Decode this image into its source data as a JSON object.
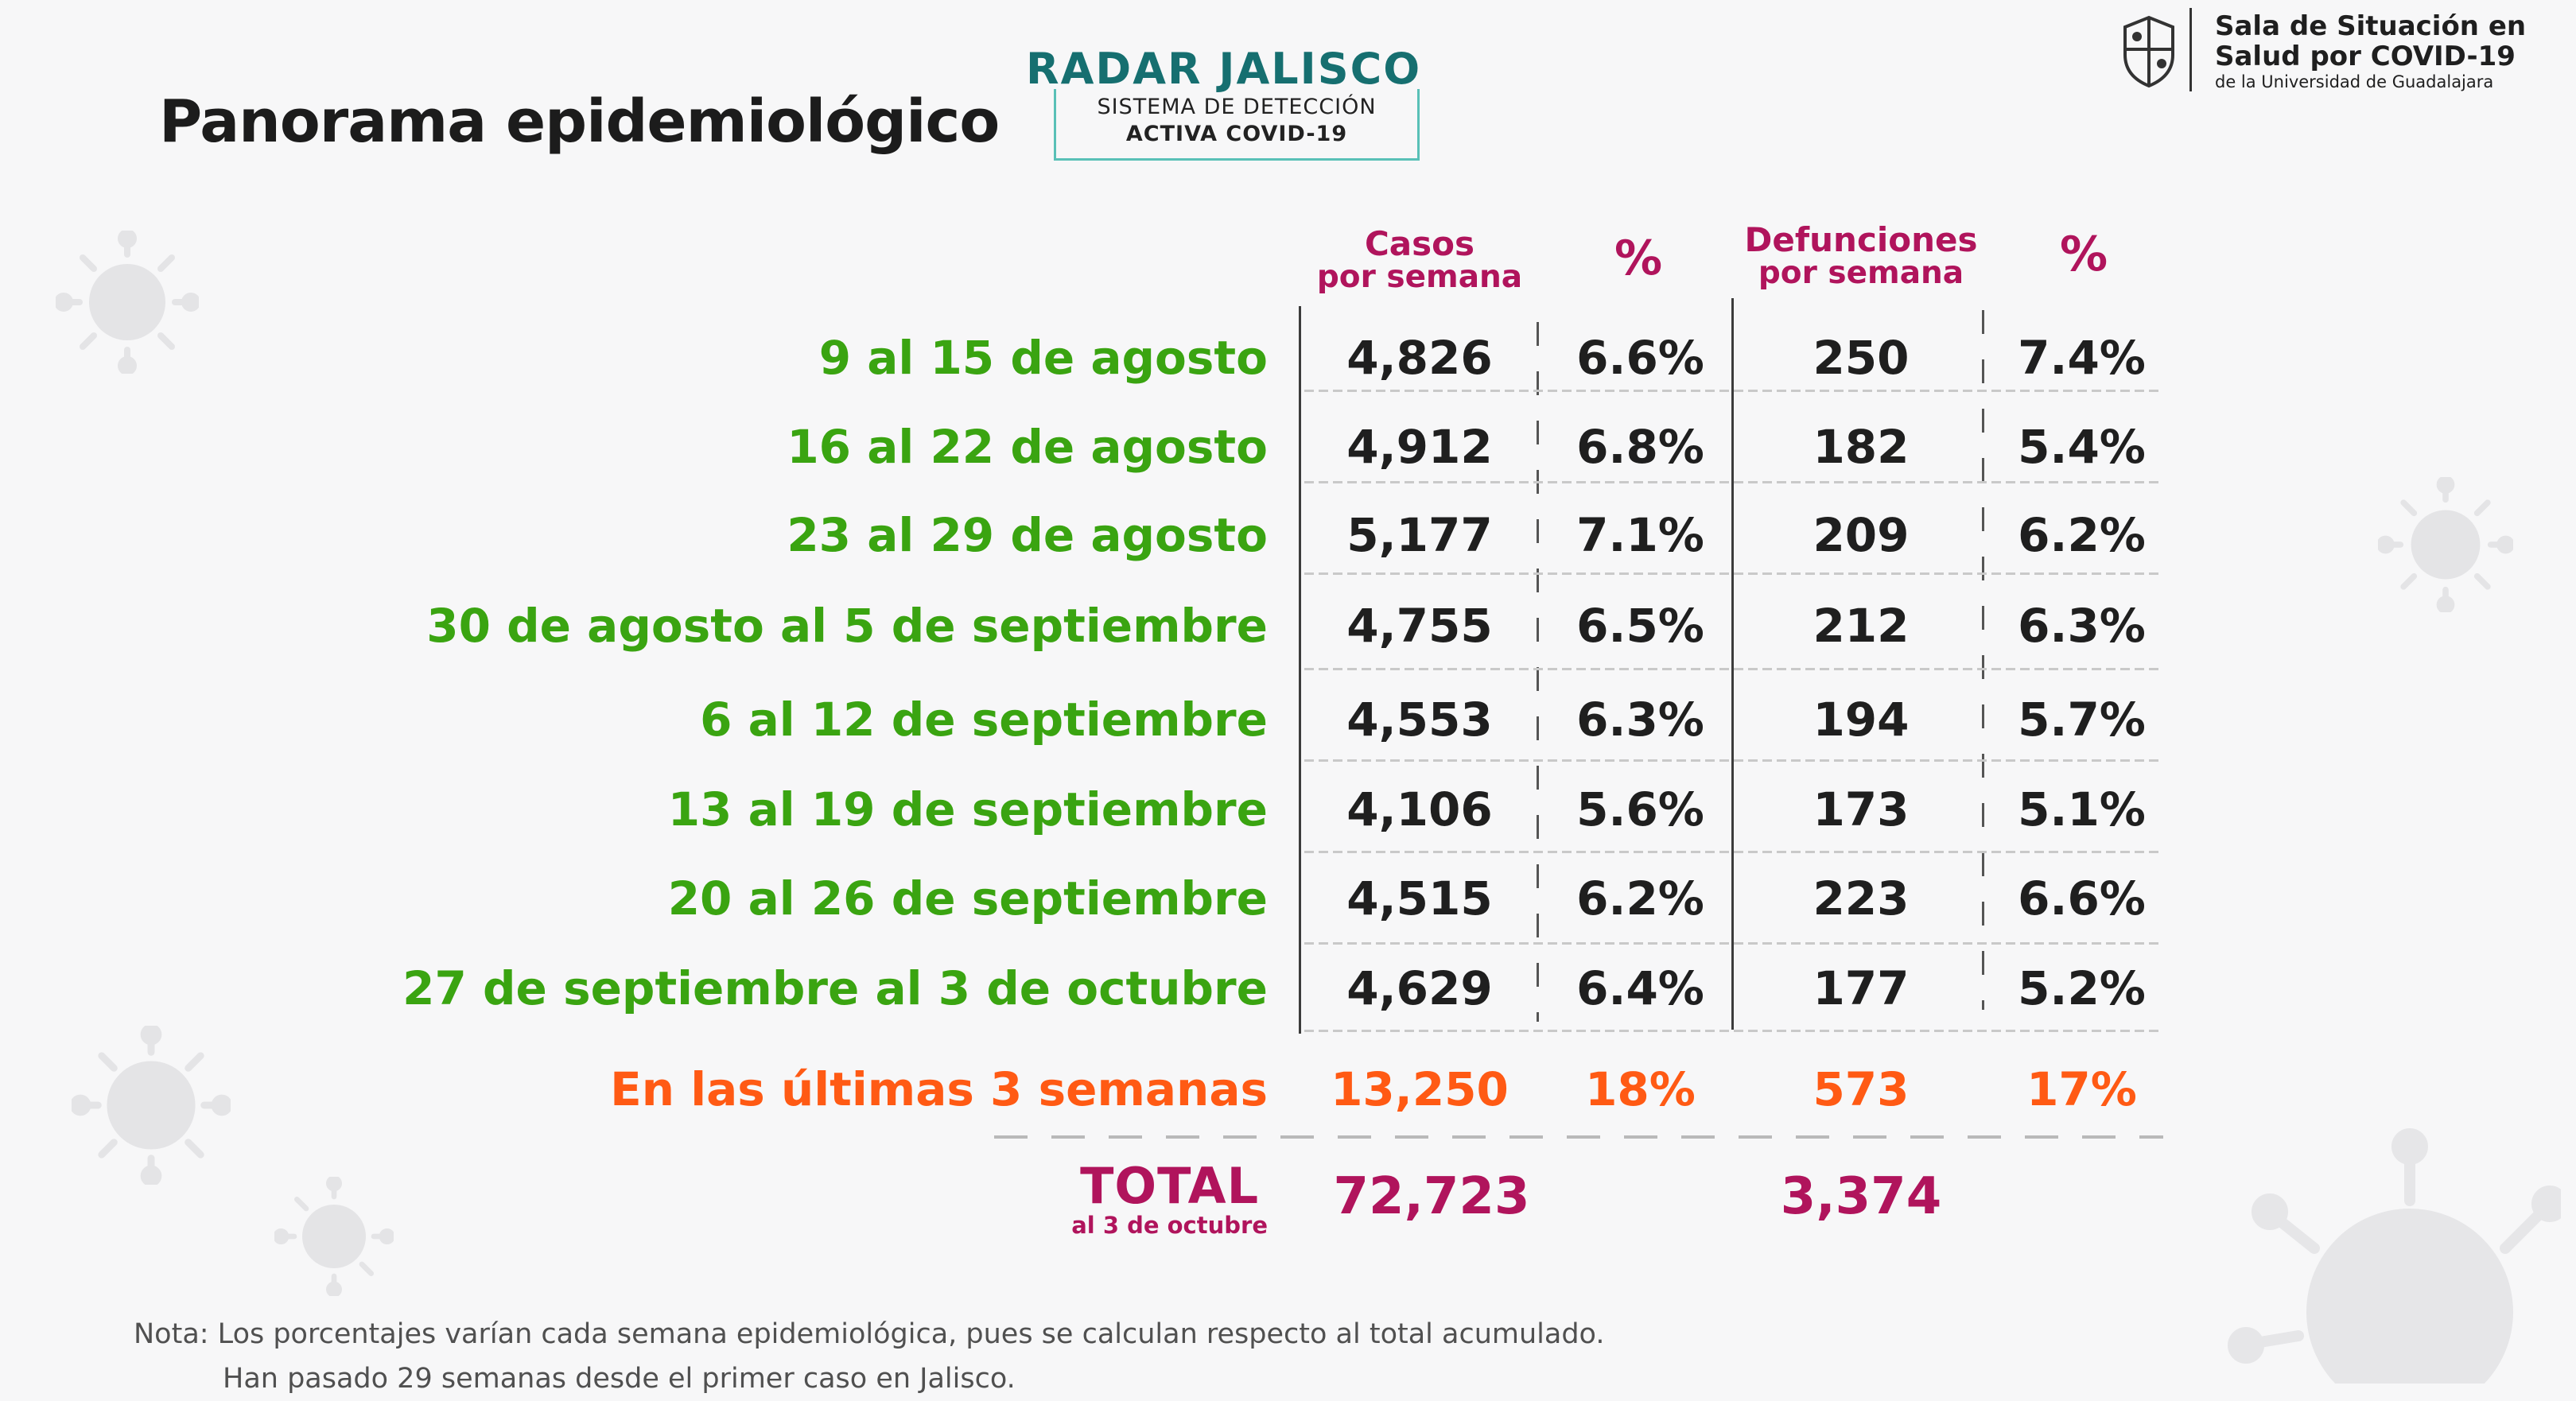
{
  "title": "Panorama epidemiológico",
  "radar": {
    "name": "RADAR JALISCO",
    "line1": "SISTEMA DE DETECCIÓN",
    "line2": "ACTIVA COVID-19"
  },
  "logo": {
    "line1": "Sala de Situación en",
    "line2": "Salud por COVID-19",
    "line3": "de la Universidad de Guadalajara"
  },
  "headers": {
    "cases_top": "Casos",
    "cases_bottom": "por semana",
    "pct1": "%",
    "deaths_top": "Defunciones",
    "deaths_bottom": "por semana",
    "pct2": "%"
  },
  "rows": [
    {
      "period": "9 al 15 de agosto",
      "cases": "4,826",
      "cases_pct": "6.6%",
      "deaths": "250",
      "deaths_pct": "7.4%"
    },
    {
      "period": "16 al 22 de agosto",
      "cases": "4,912",
      "cases_pct": "6.8%",
      "deaths": "182",
      "deaths_pct": "5.4%"
    },
    {
      "period": "23 al 29 de agosto",
      "cases": "5,177",
      "cases_pct": "7.1%",
      "deaths": "209",
      "deaths_pct": "6.2%"
    },
    {
      "period": "30 de agosto al 5 de septiembre",
      "cases": "4,755",
      "cases_pct": "6.5%",
      "deaths": "212",
      "deaths_pct": "6.3%"
    },
    {
      "period": "6 al 12 de septiembre",
      "cases": "4,553",
      "cases_pct": "6.3%",
      "deaths": "194",
      "deaths_pct": "5.7%"
    },
    {
      "period": "13 al 19 de septiembre",
      "cases": "4,106",
      "cases_pct": "5.6%",
      "deaths": "173",
      "deaths_pct": "5.1%"
    },
    {
      "period": "20 al 26 de septiembre",
      "cases": "4,515",
      "cases_pct": "6.2%",
      "deaths": "223",
      "deaths_pct": "6.6%"
    },
    {
      "period": "27 de septiembre al 3 de octubre",
      "cases": "4,629",
      "cases_pct": "6.4%",
      "deaths": "177",
      "deaths_pct": "5.2%"
    }
  ],
  "last3": {
    "period": "En las últimas 3 semanas",
    "cases": "13,250",
    "cases_pct": "18%",
    "deaths": "573",
    "deaths_pct": "17%"
  },
  "total": {
    "label": "TOTAL",
    "sublabel": "al 3 de octubre",
    "cases": "72,723",
    "deaths": "3,374"
  },
  "note": {
    "line1": "Nota: Los porcentajes varían cada semana epidemiológica, pues se calculan respecto al total acumulado.",
    "line2": "Han pasado 29 semanas desde el primer caso en Jalisco."
  }
}
